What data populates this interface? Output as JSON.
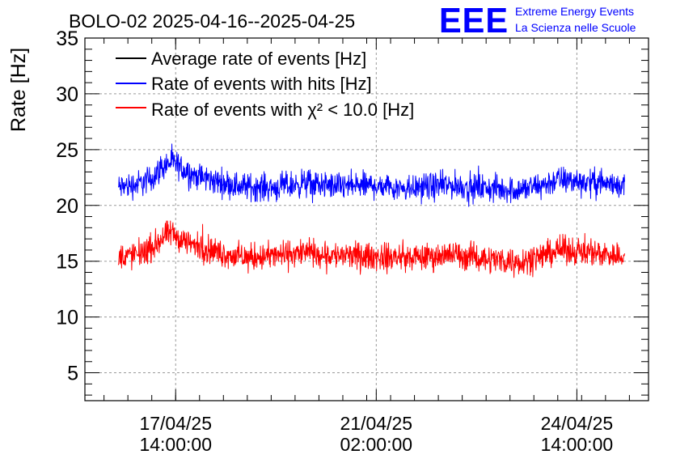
{
  "chart_data": {
    "type": "line",
    "title": "BOLO-02 2025-04-16--2025-04-25",
    "ylabel": "Rate [Hz]",
    "xlabel": "",
    "ylim": [
      2.5,
      35
    ],
    "yticks": [
      5,
      10,
      15,
      20,
      25,
      30,
      35
    ],
    "x_range": [
      "2025-04-16 00:00:00",
      "2025-04-25 20:00:00"
    ],
    "x_data_range": [
      "2025-04-16 14:00:00",
      "2025-04-25 10:00:00"
    ],
    "xticks": [
      {
        "date": "17/04/25",
        "time": "14:00:00",
        "x": "2025-04-17 14:00:00"
      },
      {
        "date": "21/04/25",
        "time": "02:00:00",
        "x": "2025-04-21 02:00:00"
      },
      {
        "date": "24/04/25",
        "time": "14:00:00",
        "x": "2025-04-24 14:00:00"
      }
    ],
    "grid": true,
    "legend_position": "top-left",
    "series": [
      {
        "name": "Average rate of events [Hz]",
        "color": "#000000",
        "values": []
      },
      {
        "name": "Rate of events with hits [Hz]",
        "color": "#0000ff",
        "points": [
          [
            "2025-04-16 14:00:00",
            21.6
          ],
          [
            "2025-04-16 22:00:00",
            21.9
          ],
          [
            "2025-04-17 04:00:00",
            22.4
          ],
          [
            "2025-04-17 08:00:00",
            23.4
          ],
          [
            "2025-04-17 12:00:00",
            23.9
          ],
          [
            "2025-04-17 16:00:00",
            23.4
          ],
          [
            "2025-04-17 22:00:00",
            22.7
          ],
          [
            "2025-04-18 06:00:00",
            22.2
          ],
          [
            "2025-04-18 18:00:00",
            21.7
          ],
          [
            "2025-04-19 08:00:00",
            21.6
          ],
          [
            "2025-04-19 20:00:00",
            22.0
          ],
          [
            "2025-04-20 10:00:00",
            21.7
          ],
          [
            "2025-04-21 02:00:00",
            21.8
          ],
          [
            "2025-04-21 18:00:00",
            21.6
          ],
          [
            "2025-04-22 10:00:00",
            21.8
          ],
          [
            "2025-04-23 02:00:00",
            21.5
          ],
          [
            "2025-04-23 14:00:00",
            21.4
          ],
          [
            "2025-04-23 22:00:00",
            21.7
          ],
          [
            "2025-04-24 06:00:00",
            22.3
          ],
          [
            "2025-04-24 18:00:00",
            22.1
          ],
          [
            "2025-04-25 10:00:00",
            21.8
          ]
        ]
      },
      {
        "name": "Rate of events with χ² < 10.0 [Hz]",
        "color": "#ff0000",
        "points": [
          [
            "2025-04-16 14:00:00",
            15.4
          ],
          [
            "2025-04-16 22:00:00",
            15.6
          ],
          [
            "2025-04-17 04:00:00",
            16.2
          ],
          [
            "2025-04-17 08:00:00",
            17.0
          ],
          [
            "2025-04-17 12:00:00",
            17.5
          ],
          [
            "2025-04-17 16:00:00",
            17.0
          ],
          [
            "2025-04-17 22:00:00",
            16.4
          ],
          [
            "2025-04-18 06:00:00",
            15.9
          ],
          [
            "2025-04-18 18:00:00",
            15.3
          ],
          [
            "2025-04-19 08:00:00",
            15.5
          ],
          [
            "2025-04-19 20:00:00",
            15.8
          ],
          [
            "2025-04-20 10:00:00",
            15.5
          ],
          [
            "2025-04-21 02:00:00",
            15.4
          ],
          [
            "2025-04-21 18:00:00",
            15.3
          ],
          [
            "2025-04-22 10:00:00",
            15.6
          ],
          [
            "2025-04-23 02:00:00",
            15.2
          ],
          [
            "2025-04-23 14:00:00",
            15.0
          ],
          [
            "2025-04-23 22:00:00",
            15.4
          ],
          [
            "2025-04-24 06:00:00",
            16.0
          ],
          [
            "2025-04-24 18:00:00",
            15.9
          ],
          [
            "2025-04-25 10:00:00",
            15.4
          ]
        ]
      }
    ]
  },
  "logo": {
    "text": "EEE",
    "line1": "Extreme Energy Events",
    "line2": "La Scienza nelle Scuole",
    "color": "#0000ff"
  }
}
